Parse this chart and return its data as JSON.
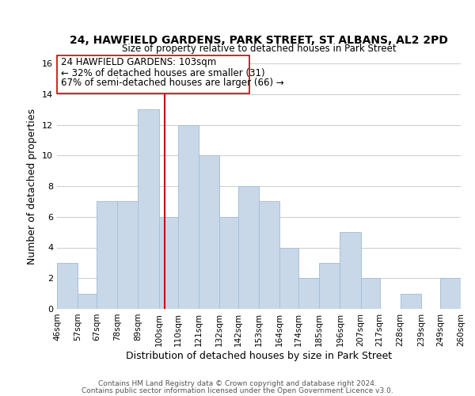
{
  "title": "24, HAWFIELD GARDENS, PARK STREET, ST ALBANS, AL2 2PD",
  "subtitle": "Size of property relative to detached houses in Park Street",
  "xlabel": "Distribution of detached houses by size in Park Street",
  "ylabel": "Number of detached properties",
  "bar_color": "#c8d8e8",
  "bar_edge_color": "#a8c0d8",
  "bins": [
    46,
    57,
    67,
    78,
    89,
    100,
    110,
    121,
    132,
    142,
    153,
    164,
    174,
    185,
    196,
    207,
    217,
    228,
    239,
    249,
    260
  ],
  "counts": [
    3,
    1,
    7,
    7,
    13,
    6,
    12,
    10,
    6,
    8,
    7,
    4,
    2,
    3,
    5,
    2,
    0,
    1,
    0,
    2
  ],
  "tick_labels": [
    "46sqm",
    "57sqm",
    "67sqm",
    "78sqm",
    "89sqm",
    "100sqm",
    "110sqm",
    "121sqm",
    "132sqm",
    "142sqm",
    "153sqm",
    "164sqm",
    "174sqm",
    "185sqm",
    "196sqm",
    "207sqm",
    "217sqm",
    "228sqm",
    "239sqm",
    "249sqm",
    "260sqm"
  ],
  "property_value": 103,
  "property_line_color": "#cc0000",
  "annotation_text_line1": "24 HAWFIELD GARDENS: 103sqm",
  "annotation_text_line2": "← 32% of detached houses are smaller (31)",
  "annotation_text_line3": "67% of semi-detached houses are larger (66) →",
  "annotation_box_color": "#ffffff",
  "annotation_box_edge": "#cc0000",
  "ylim": [
    0,
    16
  ],
  "yticks": [
    0,
    2,
    4,
    6,
    8,
    10,
    12,
    14,
    16
  ],
  "footer_line1": "Contains HM Land Registry data © Crown copyright and database right 2024.",
  "footer_line2": "Contains public sector information licensed under the Open Government Licence v3.0.",
  "background_color": "#ffffff",
  "grid_color": "#d0d0d0"
}
